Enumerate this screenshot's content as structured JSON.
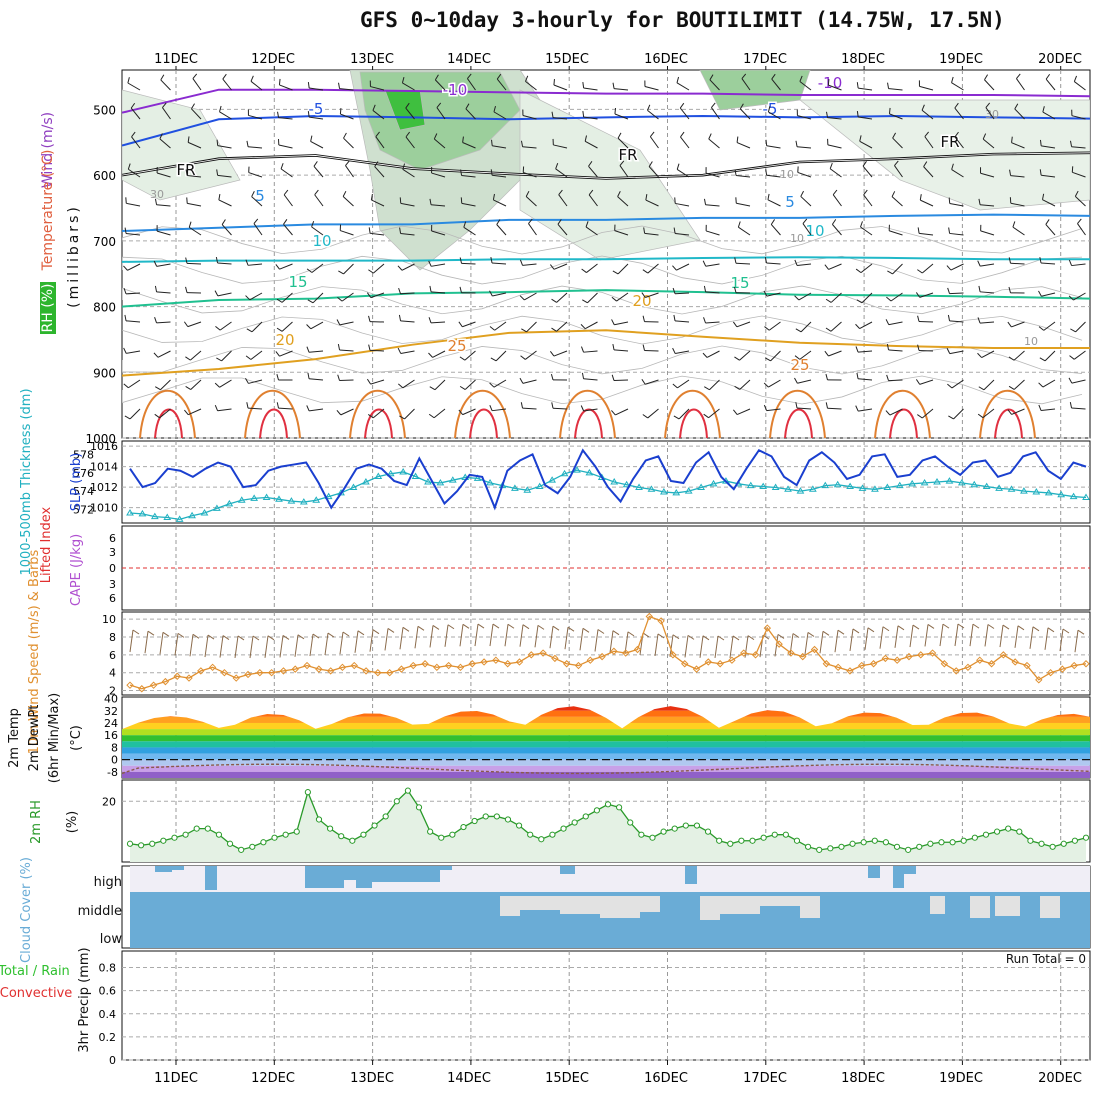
{
  "title": "GFS 0~10day 3-hourly for BOUTILIMIT (14.75W, 17.5N)",
  "colors": {
    "rh_green": "#2db52d",
    "temp_label": "#e06040",
    "wind_label": "#9040c0",
    "thickness": "#20b0c0",
    "slp": "#1a3fcf",
    "lifted_index": "#e03030",
    "cape": "#b050d0",
    "wind10m": "#e09030",
    "rh2m": "#2a9a2a",
    "cloud": "#6aacd6",
    "precip_total": "#30c030",
    "precip_conv": "#e03030"
  },
  "chart_data": {
    "type": "meteogram",
    "date_ticks": [
      "11DEC",
      "12DEC",
      "13DEC",
      "14DEC",
      "15DEC",
      "16DEC",
      "17DEC",
      "18DEC",
      "19DEC",
      "20DEC"
    ],
    "panels": {
      "upper_air": {
        "ylabel_wind": "Wind (m/s)",
        "ylabel_temp": "Temperature (°C)",
        "ylabel_rh": "RH (%)",
        "ylabel_units": "(millibars)",
        "y_ticks": [
          500,
          600,
          700,
          800,
          900,
          1000
        ],
        "ylim": [
          440,
          1000
        ],
        "isotherm_labels": [
          "-10",
          "-10",
          "-5",
          "-5",
          "FR",
          "FR",
          "FR",
          "5",
          "5",
          "10",
          "10",
          "15",
          "15",
          "20",
          "20",
          "25",
          "25"
        ],
        "rh_labels": [
          "30",
          "10",
          "10",
          "10",
          "30"
        ],
        "isotherms": [
          {
            "name": "-10",
            "color": "#8a2bd0",
            "levels": [
              505,
              470,
              470,
              472,
              474,
              476,
              476,
              478,
              478,
              478,
              480
            ]
          },
          {
            "name": "-5",
            "color": "#2050e0",
            "levels": [
              555,
              515,
              510,
              512,
              515,
              512,
              510,
              512,
              510,
              512,
              514
            ]
          },
          {
            "name": "FR",
            "color": "#111111",
            "levels": [
              600,
              575,
              570,
              590,
              598,
              605,
              600,
              580,
              575,
              568,
              566
            ]
          },
          {
            "name": "5",
            "color": "#2a8ae0",
            "levels": [
              685,
              680,
              675,
              675,
              668,
              668,
              665,
              665,
              662,
              660,
              662
            ]
          },
          {
            "name": "10",
            "color": "#20b8c8",
            "levels": [
              732,
              730,
              730,
              730,
              728,
              728,
              726,
              725,
              726,
              728,
              728
            ]
          },
          {
            "name": "15",
            "color": "#20c090",
            "levels": [
              800,
              790,
              788,
              780,
              778,
              775,
              778,
              782,
              783,
              785,
              788
            ]
          },
          {
            "name": "20",
            "color": "#e0a020",
            "levels": [
              905,
              895,
              880,
              858,
              840,
              836,
              846,
              855,
              860,
              863,
              863
            ]
          }
        ]
      },
      "thickness_slp": {
        "ylabel_thickness": "1000-500mb Thickness (dm)",
        "ylabel_slp": "SLP (mb)",
        "thickness_ticks": [
          572,
          574,
          576,
          578
        ],
        "slp_ticks": [
          1010,
          1012,
          1014,
          1016
        ],
        "thickness": [
          571.6,
          571.5,
          571.2,
          571.1,
          570.9,
          571.3,
          571.6,
          572.1,
          572.6,
          573.0,
          573.2,
          573.3,
          573.1,
          572.9,
          572.8,
          573.0,
          573.4,
          573.8,
          574.4,
          575.0,
          575.6,
          575.9,
          576.1,
          575.6,
          575.0,
          574.9,
          575.2,
          575.5,
          575.4,
          574.9,
          574.6,
          574.3,
          574.1,
          574.5,
          575.2,
          575.9,
          576.3,
          576.0,
          575.5,
          575.0,
          574.7,
          574.4,
          574.2,
          573.9,
          573.8,
          574.0,
          574.4,
          574.8,
          575.1,
          574.8,
          574.6,
          574.5,
          574.4,
          574.2,
          574.0,
          574.2,
          574.6,
          574.7,
          574.5,
          574.3,
          574.2,
          574.4,
          574.6,
          574.8,
          574.9,
          575.0,
          575.1,
          574.9,
          574.7,
          574.5,
          574.3,
          574.2,
          574.0,
          573.9,
          573.8,
          573.6,
          573.4,
          573.3
        ],
        "slp": [
          1013.8,
          1012.0,
          1012.4,
          1013.8,
          1013.6,
          1013.0,
          1013.8,
          1014.4,
          1014.0,
          1012.0,
          1012.2,
          1013.6,
          1014.0,
          1014.2,
          1014.4,
          1012.4,
          1010.0,
          1011.8,
          1013.8,
          1014.2,
          1013.8,
          1012.6,
          1012.2,
          1014.8,
          1012.6,
          1010.4,
          1011.6,
          1013.2,
          1013.0,
          1010.0,
          1013.6,
          1014.6,
          1015.2,
          1012.2,
          1011.4,
          1013.0,
          1015.6,
          1014.0,
          1012.0,
          1010.6,
          1012.8,
          1014.6,
          1015.0,
          1012.6,
          1012.4,
          1014.4,
          1015.4,
          1013.0,
          1011.8,
          1013.8,
          1015.6,
          1015.0,
          1013.0,
          1012.2,
          1014.6,
          1015.4,
          1014.4,
          1012.8,
          1013.2,
          1015.0,
          1015.2,
          1013.0,
          1013.2,
          1014.6,
          1015.0,
          1014.0,
          1013.2,
          1014.4,
          1014.6,
          1013.0,
          1013.4,
          1015.0,
          1015.4,
          1013.6,
          1012.8,
          1014.4,
          1014.0
        ]
      },
      "stability": {
        "ylabel_li": "Lifted Index",
        "ylabel_cape": "CAPE (J/kg)",
        "li_ticks": [
          "6",
          "3",
          "0",
          "3",
          "6"
        ]
      },
      "wind10m": {
        "ylabel": "10m Wind Speed (m/s) & Barbs",
        "y_ticks": [
          2,
          4,
          6,
          8,
          10
        ],
        "speed": [
          2.6,
          2.2,
          2.6,
          3.0,
          3.6,
          3.4,
          4.2,
          4.6,
          4.0,
          3.4,
          3.8,
          4.0,
          4.0,
          4.2,
          4.4,
          4.8,
          4.4,
          4.2,
          4.6,
          4.8,
          4.2,
          4.0,
          4.0,
          4.4,
          4.8,
          5.0,
          4.6,
          4.8,
          4.6,
          5.0,
          5.2,
          5.4,
          5.0,
          5.2,
          6.0,
          6.2,
          5.6,
          5.0,
          4.8,
          5.4,
          5.8,
          6.4,
          6.2,
          6.6,
          10.3,
          9.8,
          6.0,
          5.0,
          4.4,
          5.2,
          5.0,
          5.4,
          6.2,
          6.0,
          9.0,
          7.2,
          6.2,
          5.8,
          6.6,
          5.0,
          4.6,
          4.2,
          4.8,
          5.0,
          5.6,
          5.4,
          5.8,
          6.0,
          6.2,
          5.0,
          4.2,
          4.6,
          5.4,
          5.0,
          6.0,
          5.2,
          4.8,
          3.2,
          4.0,
          4.4,
          4.8,
          5.0
        ]
      },
      "temperature": {
        "ylabel_temp": "2m Temp",
        "ylabel_dew": "2m DewPt",
        "ylabel_extra": "(6hr Min/Max)",
        "ylabel_units": "(°C)",
        "y_ticks": [
          40,
          32,
          24,
          16,
          8,
          0,
          -8
        ],
        "temp_max": [
          28.5,
          30,
          30.5,
          32,
          35,
          35,
          32.5,
          31,
          31,
          30
        ],
        "temp_min": [
          20,
          18,
          20,
          21,
          21,
          20,
          20,
          20,
          20,
          20
        ]
      },
      "rh2m": {
        "ylabel": "2m RH",
        "ylabel_units": "(%)",
        "y_ticks": [
          20
        ],
        "values": [
          6,
          5.5,
          6,
          7,
          8,
          9,
          11,
          11,
          9,
          6,
          4,
          5,
          6.5,
          8,
          9,
          10,
          23,
          14,
          11,
          8.5,
          7,
          9,
          12,
          15,
          20,
          23.5,
          18,
          10,
          8,
          9,
          11.5,
          13.5,
          15,
          15,
          14,
          12,
          9,
          7.5,
          9,
          11,
          13,
          15,
          17,
          19,
          18,
          13,
          9,
          8,
          10,
          11,
          12,
          12,
          10,
          7,
          6,
          7,
          7,
          8,
          9,
          9,
          7,
          5,
          4,
          4.5,
          5,
          6,
          6.5,
          7,
          6.5,
          5,
          4,
          5,
          6,
          6.5,
          6.5,
          7,
          8,
          9,
          10,
          11,
          10,
          7,
          6,
          5,
          6,
          7,
          8
        ]
      },
      "cloud": {
        "ylabel": "Cloud Cover (%)",
        "levels": [
          "high",
          "middle",
          "low"
        ]
      },
      "precip": {
        "ylabel_total": "Total / Rain",
        "ylabel_conv": "Convective",
        "ylabel_units": "3hr Precip (mm)",
        "y_ticks": [
          "0",
          "0.2",
          "0.4",
          "0.6",
          "0.8"
        ],
        "run_total": "Run Total = 0"
      }
    }
  }
}
